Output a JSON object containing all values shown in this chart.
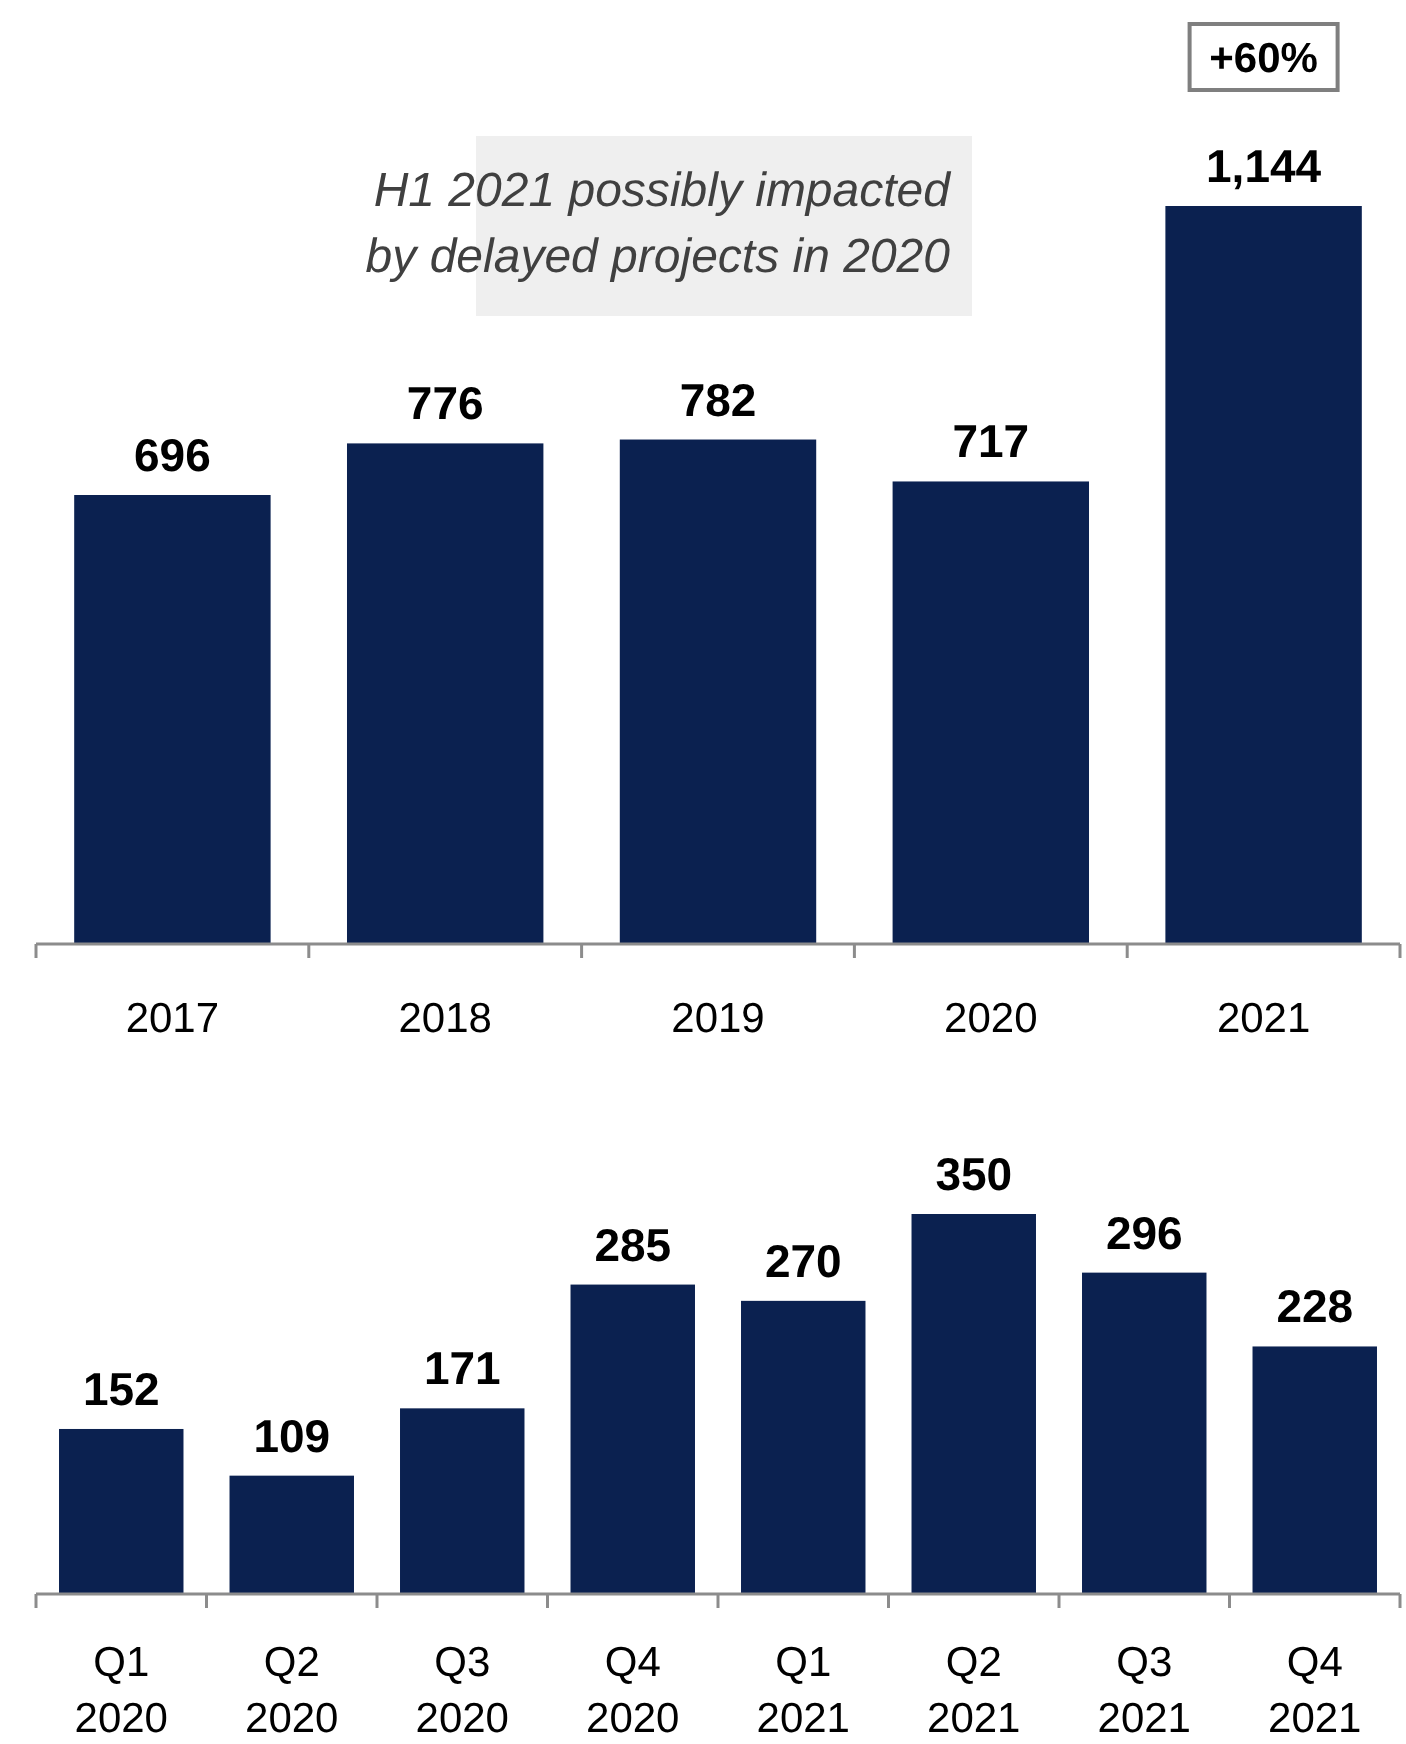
{
  "chart_data": [
    {
      "type": "bar",
      "categories": [
        "2017",
        "2018",
        "2019",
        "2020",
        "2021"
      ],
      "values": [
        696,
        776,
        782,
        717,
        1144
      ],
      "color": "#0b2150",
      "data_labels": true,
      "value_labels": [
        "696",
        "776",
        "782",
        "717",
        "1,144"
      ],
      "annotations": [
        "+60%",
        "H1 2021 possibly impacted\nby delayed projects in 2020"
      ]
    },
    {
      "type": "bar",
      "categories": [
        "Q1 2020",
        "Q2 2020",
        "Q3 2020",
        "Q4 2020",
        "Q1 2021",
        "Q2 2021",
        "Q3 2021",
        "Q4 2021"
      ],
      "values": [
        152,
        109,
        171,
        285,
        270,
        350,
        296,
        228
      ],
      "color": "#0b2150",
      "data_labels": true
    }
  ]
}
